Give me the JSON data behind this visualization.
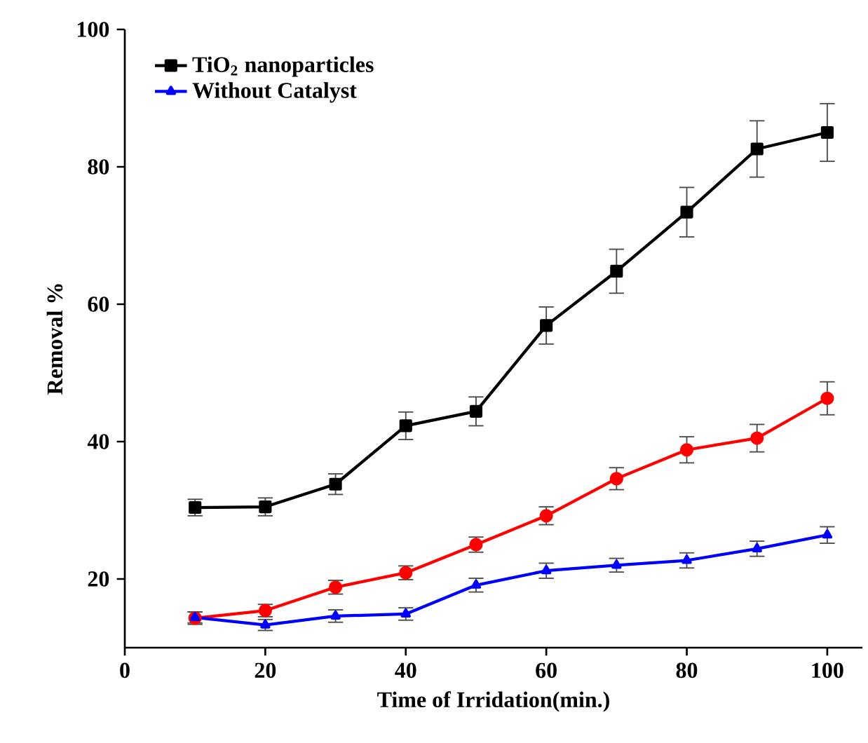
{
  "chart_data": {
    "type": "line",
    "xlabel": "Time of Irridation(min.)",
    "ylabel": "Removal %",
    "x": [
      10,
      20,
      30,
      40,
      50,
      60,
      70,
      80,
      90,
      100
    ],
    "series": [
      {
        "name": "TiO$_{2}$ nanoparticles",
        "color": "#000000",
        "marker": "square",
        "values": [
          30.4,
          30.5,
          33.8,
          42.3,
          44.4,
          56.9,
          64.8,
          73.4,
          82.6,
          85.0
        ],
        "errors": [
          1.2,
          1.3,
          1.5,
          2.0,
          2.1,
          2.7,
          3.2,
          3.6,
          4.1,
          4.2
        ]
      },
      {
        "color": "#ff0000",
        "marker": "circle",
        "values": [
          14.3,
          15.4,
          18.8,
          20.9,
          25.0,
          29.2,
          34.6,
          38.8,
          40.5,
          46.3
        ],
        "errors": [
          0.9,
          0.9,
          1.0,
          1.0,
          1.1,
          1.3,
          1.6,
          1.9,
          2.0,
          2.4
        ]
      },
      {
        "name": "Without Catalyst",
        "color": "#0000ff",
        "marker": "triangle",
        "values": [
          14.4,
          13.3,
          14.6,
          14.9,
          19.1,
          21.2,
          22.0,
          22.7,
          24.4,
          26.4
        ],
        "errors": [
          0.8,
          0.8,
          0.9,
          0.9,
          1.0,
          1.1,
          1.0,
          1.1,
          1.1,
          1.2
        ]
      }
    ],
    "xlim": [
      0,
      105
    ],
    "ylim": [
      10,
      100
    ],
    "xticks": [
      0,
      20,
      40,
      60,
      80,
      100
    ],
    "yticks": [
      20,
      40,
      60,
      80,
      100
    ],
    "legend": "top left"
  }
}
